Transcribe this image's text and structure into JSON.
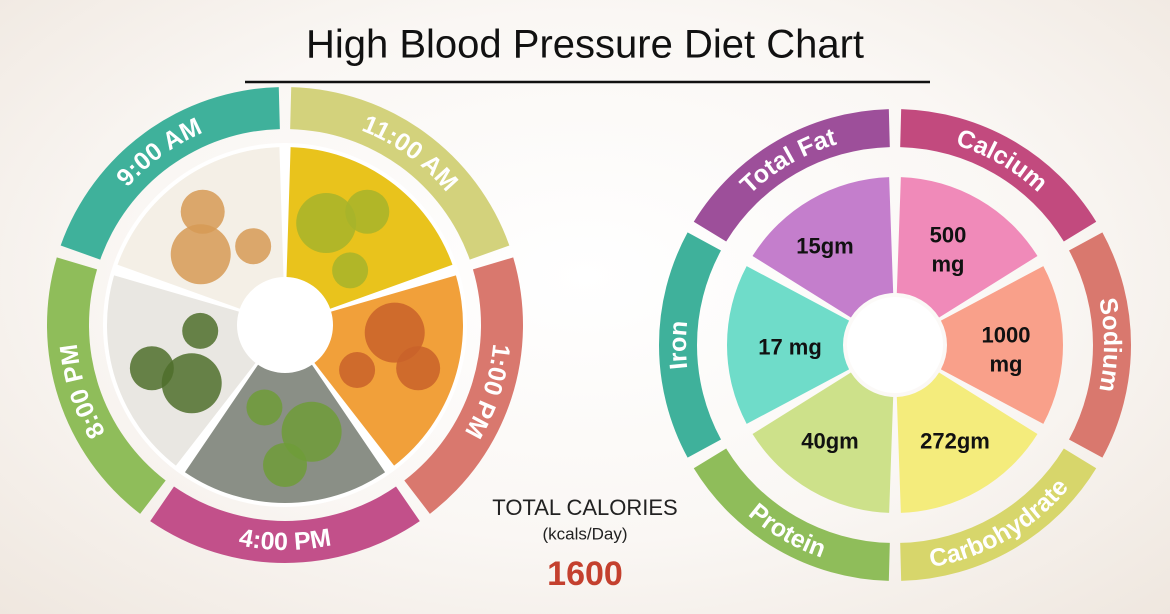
{
  "title": "High Blood Pressure Diet Chart",
  "meal_times": [
    "9:00 AM",
    "11:00 AM",
    "1:00 PM",
    "4:00 PM",
    "8:00 PM"
  ],
  "total_calories": {
    "label": "TOTAL CALORIES",
    "unit": "(kcals/Day)",
    "value": 1600
  },
  "nutrients": [
    {
      "name": "Total Fat",
      "amount": "15gm"
    },
    {
      "name": "Calcium",
      "amount": "500 mg"
    },
    {
      "name": "Sodium",
      "amount": "1000 mg"
    },
    {
      "name": "Carbohydrate",
      "amount": "272gm"
    },
    {
      "name": "Protein",
      "amount": "40gm"
    },
    {
      "name": "Iron",
      "amount": "17 mg"
    }
  ]
}
